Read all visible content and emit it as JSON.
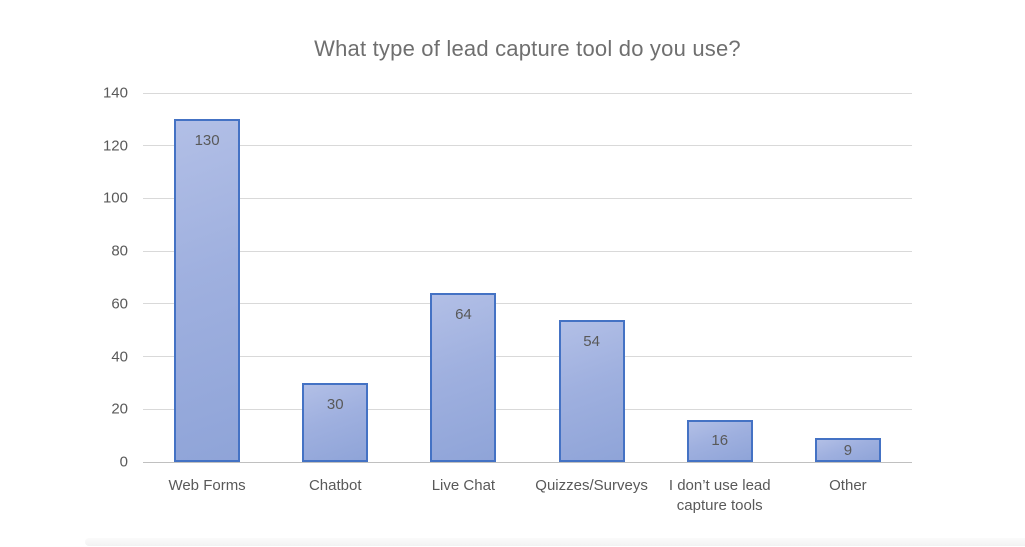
{
  "chart_data": {
    "type": "bar",
    "title": "What type of lead capture tool do you use?",
    "categories": [
      "Web Forms",
      "Chatbot",
      "Live Chat",
      "Quizzes/Surveys",
      "I don’t use lead capture tools",
      "Other"
    ],
    "values": [
      130,
      30,
      64,
      54,
      16,
      9
    ],
    "xlabel": "",
    "ylabel": "",
    "ylim": [
      0,
      140
    ],
    "yticks": [
      0,
      20,
      40,
      60,
      80,
      100,
      120,
      140
    ],
    "grid": true,
    "legend_position": "none",
    "data_labels": "inside-end",
    "colors": {
      "bar_border": "#4472c4",
      "bar_fill_light": "#b2bfe6",
      "bar_fill_dark": "#8fa4d8",
      "gridline": "#d9d9d9",
      "axis_line": "#c0c0c0",
      "title_text": "#6f6f6f",
      "tick_text": "#595959",
      "data_label_text": "#595959"
    }
  }
}
